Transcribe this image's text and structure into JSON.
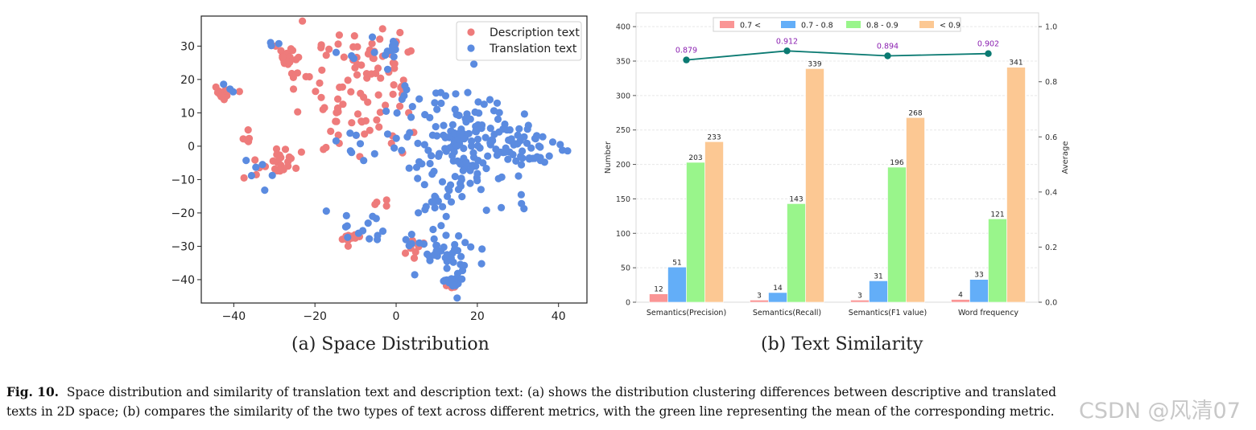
{
  "chart_data": [
    {
      "type": "scatter",
      "panel_caption": "(a) Space Distribution",
      "xlim": [
        -48,
        47
      ],
      "ylim": [
        -47,
        39
      ],
      "xticks": [
        -40,
        -20,
        0,
        20,
        40
      ],
      "yticks": [
        -40,
        -30,
        -20,
        -10,
        0,
        10,
        20,
        30
      ],
      "xticklabels": [
        "−40",
        "−20",
        "0",
        "20",
        "40"
      ],
      "yticklabels": [
        "−40",
        "−30",
        "−20",
        "−10",
        "0",
        "10",
        "20",
        "30"
      ],
      "legend_position": "top-right",
      "series": [
        {
          "name": "Description text",
          "color": "#ee7b7b",
          "clusters": [
            {
              "x": -42.5,
              "y": 16,
              "sx": 1.0,
              "sy": 1.0,
              "n": 22
            },
            {
              "x": -27,
              "y": 26.5,
              "sx": 1.3,
              "sy": 1.2,
              "n": 22
            },
            {
              "x": -21,
              "y": 20,
              "sx": 4,
              "sy": 6,
              "n": 20
            },
            {
              "x": -29,
              "y": -5,
              "sx": 4.5,
              "sy": 3,
              "n": 26
            },
            {
              "x": -37,
              "y": 2,
              "sx": 1.2,
              "sy": 1.5,
              "n": 6
            },
            {
              "x": -10,
              "y": 10,
              "sx": 5,
              "sy": 8,
              "n": 38
            },
            {
              "x": -5,
              "y": 28,
              "sx": 6,
              "sy": 4,
              "n": 30
            },
            {
              "x": 0,
              "y": 16,
              "sx": 2.5,
              "sy": 5,
              "n": 14
            },
            {
              "x": -11,
              "y": -27,
              "sx": 1.2,
              "sy": 1.2,
              "n": 14
            },
            {
              "x": 5,
              "y": -31,
              "sx": 1.2,
              "sy": 1.5,
              "n": 8
            },
            {
              "x": 13,
              "y": -42,
              "sx": 0.8,
              "sy": 0.6,
              "n": 4
            },
            {
              "x": -5,
              "y": -16,
              "sx": 1.5,
              "sy": 1.0,
              "n": 4
            }
          ]
        },
        {
          "name": "Translation text",
          "color": "#5b8be0",
          "clusters": [
            {
              "x": 17,
              "y": 0,
              "sx": 8,
              "sy": 8,
              "n": 170
            },
            {
              "x": 32,
              "y": -1,
              "sx": 5,
              "sy": 4,
              "n": 40
            },
            {
              "x": 15,
              "y": -33,
              "sx": 3,
              "sy": 4,
              "n": 30
            },
            {
              "x": 8,
              "y": -30,
              "sx": 3.5,
              "sy": 4,
              "n": 16
            },
            {
              "x": 14,
              "y": -41,
              "sx": 1.2,
              "sy": 1.0,
              "n": 14
            },
            {
              "x": -8,
              "y": -25,
              "sx": 3,
              "sy": 3,
              "n": 12
            },
            {
              "x": -5,
              "y": 28,
              "sx": 4,
              "sy": 3,
              "n": 14
            },
            {
              "x": -12,
              "y": 0,
              "sx": 3,
              "sy": 3,
              "n": 8
            },
            {
              "x": -33,
              "y": -6,
              "sx": 3,
              "sy": 3,
              "n": 6
            },
            {
              "x": 8,
              "y": -18,
              "sx": 2,
              "sy": 3,
              "n": 8
            },
            {
              "x": 2,
              "y": 12,
              "sx": 3,
              "sy": 5,
              "n": 6
            },
            {
              "x": -42,
              "y": 17,
              "sx": 1.5,
              "sy": 1.5,
              "n": 3
            },
            {
              "x": -30,
              "y": 30,
              "sx": 2,
              "sy": 2,
              "n": 3
            }
          ]
        }
      ]
    },
    {
      "type": "bar",
      "panel_caption": "(b) Text Similarity",
      "categories": [
        "Semantics(Precision)",
        "Semantics(Recall)",
        "Semantics(F1 value)",
        "Word frequency"
      ],
      "series": [
        {
          "name": "0.7 <",
          "color": "#fa9595",
          "values": [
            12,
            3,
            3,
            4
          ]
        },
        {
          "name": "0.7 - 0.8",
          "color": "#63aef8",
          "values": [
            51,
            14,
            31,
            33
          ]
        },
        {
          "name": "0.8 - 0.9",
          "color": "#99f58b",
          "values": [
            203,
            143,
            196,
            121
          ]
        },
        {
          "name": "< 0.9",
          "color": "#fcc893",
          "values": [
            233,
            339,
            268,
            341
          ]
        }
      ],
      "ylabel": "Number",
      "ylim": [
        0,
        420
      ],
      "yticks": [
        0,
        50,
        100,
        150,
        200,
        250,
        300,
        350,
        400
      ],
      "ylabel_right": "Average",
      "ylim_right": [
        0,
        1.05
      ],
      "yticks_right": [
        0.0,
        0.2,
        0.4,
        0.6,
        0.8,
        1.0
      ],
      "ytick_labels_right": [
        "0.0",
        "0.2",
        "0.4",
        "0.6",
        "0.8",
        "1.0"
      ],
      "line": {
        "name": "Average",
        "color": "#0b7a72",
        "label_color": "#8a1fb0",
        "values": [
          0.879,
          0.912,
          0.894,
          0.902
        ],
        "labels": [
          "0.879",
          "0.912",
          "0.894",
          "0.902"
        ]
      },
      "legend_position": "top"
    }
  ],
  "captions": {
    "panel_a": "(a) Space Distribution",
    "panel_b": "(b) Text Similarity",
    "figure_label": "Fig. 10.",
    "figure_text": "Space distribution and similarity of translation text and description text: (a) shows the distribution clustering differences between descriptive and translated texts in 2D space; (b) compares the similarity of the two types of text across different metrics, with the green line representing the mean of the corresponding metric."
  },
  "watermark": "CSDN @风清07"
}
